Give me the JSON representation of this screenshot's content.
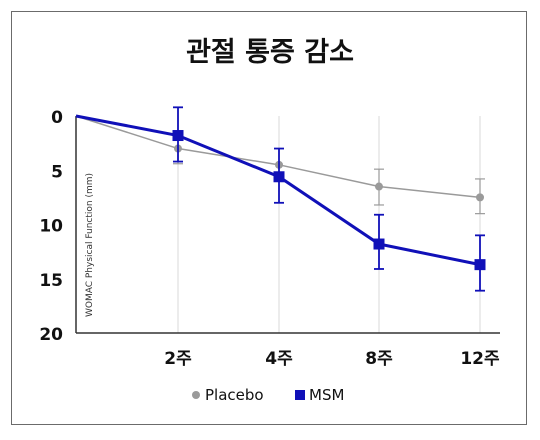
{
  "chart_data": {
    "type": "line",
    "title": "관절 통증 감소",
    "ylabel": "WOMAC Physical Function (mm)",
    "xlabel": "",
    "y_reversed": true,
    "ylim": [
      0,
      20
    ],
    "yticks": [
      "0",
      "5",
      "10",
      "15",
      "20"
    ],
    "categories": [
      "",
      "2주",
      "4주",
      "8주",
      "12주"
    ],
    "legend_position": "bottom-center",
    "grid": "vertical",
    "series": [
      {
        "name": "Placebo",
        "color": "#9a9a9a",
        "marker": "circle",
        "values": [
          0,
          3,
          4.5,
          6.5,
          7.5
        ],
        "err_low": [
          null,
          4.4,
          5.8,
          8.2,
          9.0
        ],
        "err_high": [
          null,
          null,
          null,
          4.9,
          5.8
        ]
      },
      {
        "name": "MSM",
        "color": "#1010b8",
        "marker": "square",
        "values": [
          0,
          1.8,
          5.6,
          11.8,
          13.7
        ],
        "err_low": [
          null,
          4.2,
          8.0,
          14.1,
          16.1
        ],
        "err_high": [
          null,
          -0.8,
          3.0,
          9.1,
          11.0
        ]
      }
    ]
  }
}
